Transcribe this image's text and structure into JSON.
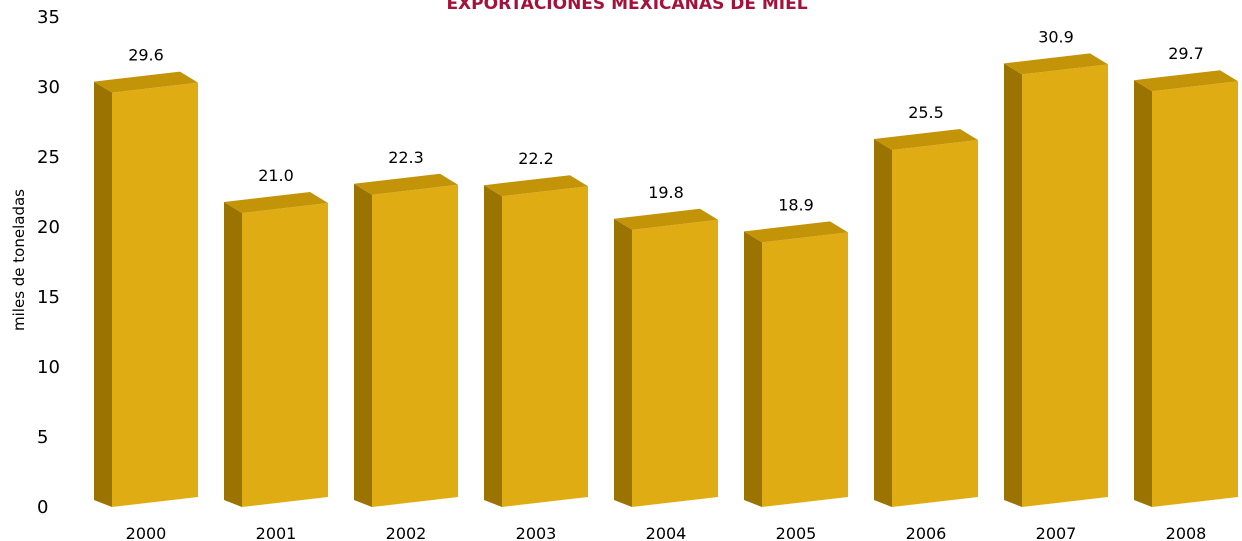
{
  "chart_data": {
    "type": "bar",
    "title": "EXPORTACIONES MEXICANAS DE MIEL",
    "xlabel": "",
    "ylabel": "miles de toneladas",
    "categories": [
      "2000",
      "2001",
      "2002",
      "2003",
      "2004",
      "2005",
      "2006",
      "2007",
      "2008"
    ],
    "values": [
      29.6,
      21.0,
      22.3,
      22.2,
      19.8,
      18.9,
      25.5,
      30.9,
      29.7
    ],
    "value_labels": [
      "29.6",
      "21.0",
      "22.3",
      "22.2",
      "19.8",
      "18.9",
      "25.5",
      "30.9",
      "29.7"
    ],
    "ylim": [
      0,
      35
    ],
    "yticks": [
      "0",
      "5",
      "10",
      "15",
      "20",
      "25",
      "30",
      "35"
    ],
    "grid": false,
    "style": "3d-bars",
    "colors": {
      "bar_front": "#e0ac14",
      "bar_side": "#9a7300",
      "bar_top": "#c49408",
      "title": "#a3123a"
    }
  }
}
